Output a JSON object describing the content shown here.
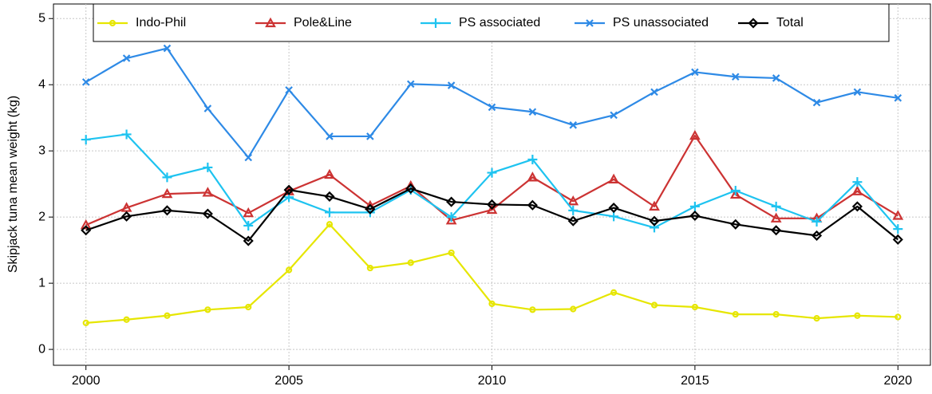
{
  "chart_data": {
    "type": "line",
    "y_label": "Skipjack tuna mean weight (kg)",
    "x": [
      2000,
      2001,
      2002,
      2003,
      2004,
      2005,
      2006,
      2007,
      2008,
      2009,
      2010,
      2011,
      2012,
      2013,
      2014,
      2015,
      2016,
      2017,
      2018,
      2019,
      2020
    ],
    "series": [
      {
        "name": "Indo-Phil",
        "color": "#e6e600",
        "marker": "circle",
        "values": [
          0.4,
          0.45,
          0.51,
          0.6,
          0.64,
          1.2,
          1.89,
          1.23,
          1.31,
          1.46,
          0.69,
          0.6,
          0.61,
          0.86,
          0.67,
          0.64,
          0.53,
          0.53,
          0.47,
          0.51,
          0.49
        ]
      },
      {
        "name": "Pole&Line",
        "color": "#cc3333",
        "marker": "triangle",
        "values": [
          1.88,
          2.14,
          2.35,
          2.37,
          2.06,
          2.39,
          2.64,
          2.17,
          2.47,
          1.95,
          2.11,
          2.6,
          2.24,
          2.57,
          2.16,
          3.23,
          2.34,
          1.98,
          1.98,
          2.39,
          2.02
        ]
      },
      {
        "name": "PS associated",
        "color": "#1ec3f0",
        "marker": "plus",
        "values": [
          3.17,
          3.25,
          2.6,
          2.75,
          1.87,
          2.3,
          2.07,
          2.07,
          2.41,
          2.0,
          2.67,
          2.87,
          2.1,
          2.01,
          1.84,
          2.16,
          2.4,
          2.16,
          1.93,
          2.53,
          1.82
        ]
      },
      {
        "name": "PS unassociated",
        "color": "#2e8ae6",
        "marker": "cross",
        "values": [
          4.04,
          4.4,
          4.55,
          3.64,
          2.9,
          3.92,
          3.22,
          3.22,
          4.01,
          3.99,
          3.66,
          3.59,
          3.39,
          3.54,
          3.89,
          4.19,
          4.12,
          4.1,
          3.73,
          3.89,
          3.8
        ]
      },
      {
        "name": "Total",
        "color": "#000000",
        "marker": "diamond",
        "values": [
          1.8,
          2.01,
          2.1,
          2.05,
          1.64,
          2.41,
          2.31,
          2.12,
          2.43,
          2.23,
          2.19,
          2.18,
          1.94,
          2.14,
          1.94,
          2.02,
          1.89,
          1.8,
          1.72,
          2.16,
          1.66
        ]
      }
    ],
    "xlim": [
      1999.2,
      2020.8
    ],
    "xticks": [
      2000,
      2005,
      2010,
      2015,
      2020
    ],
    "ylim": [
      -0.24,
      5.22
    ],
    "yticks": [
      0,
      1,
      2,
      3,
      4,
      5
    ],
    "grid": true,
    "legend": "top"
  }
}
